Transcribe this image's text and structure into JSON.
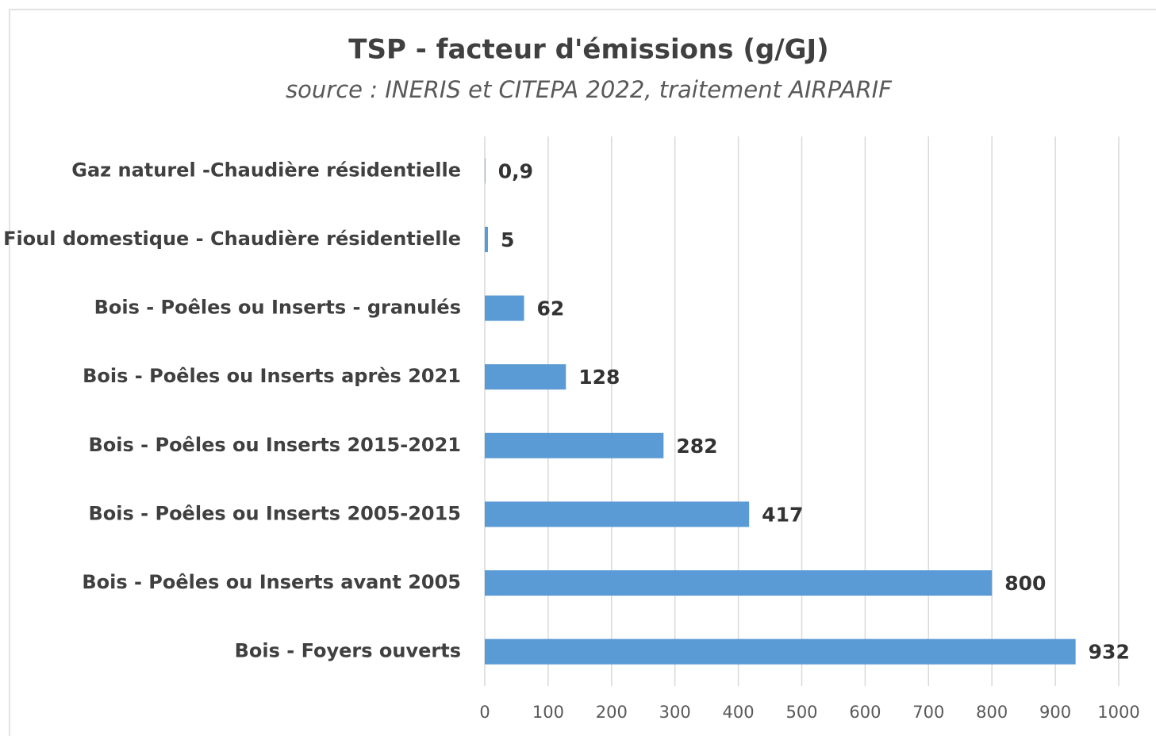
{
  "chart_data": {
    "type": "bar",
    "orientation": "horizontal",
    "title": "TSP - facteur d'émissions (g/GJ)",
    "subtitle": "source : INERIS et CITEPA 2022, traitement AIRPARIF",
    "categories": [
      "Gaz naturel -Chaudière résidentielle",
      "Fioul domestique - Chaudière résidentielle",
      "Bois - Poêles ou Inserts - granulés",
      "Bois - Poêles ou Inserts après 2021",
      "Bois - Poêles ou Inserts 2015-2021",
      "Bois - Poêles ou Inserts 2005-2015",
      "Bois - Poêles ou Inserts avant 2005",
      "Bois - Foyers ouverts"
    ],
    "values": [
      0.9,
      5,
      62,
      128,
      282,
      417,
      800,
      932
    ],
    "value_labels": [
      "0,9",
      "5",
      "62",
      "128",
      "282",
      "417",
      "800",
      "932"
    ],
    "color": "#5b9bd5",
    "xlim": [
      0,
      1000
    ],
    "xticks": [
      0,
      100,
      200,
      300,
      400,
      500,
      600,
      700,
      800,
      900,
      1000
    ],
    "grid": true
  }
}
